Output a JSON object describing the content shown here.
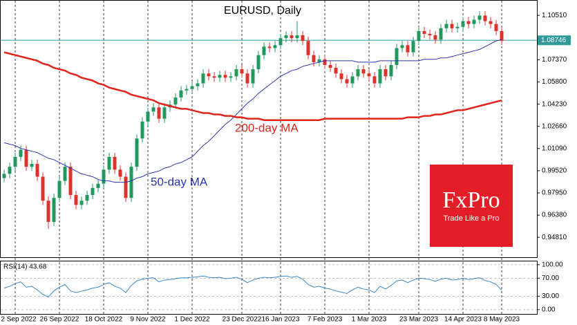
{
  "chart_data": [
    {
      "type": "candlestick",
      "title": "EURUSD, Daily",
      "categories": [
        null,
        null,
        "2 Sep 2022",
        null,
        null,
        null,
        null,
        null,
        null,
        null,
        "26 Sep 2022",
        null,
        null,
        null,
        null,
        null,
        null,
        null,
        "18 Oct 2022",
        null,
        null,
        null,
        null,
        null,
        null,
        null,
        "9 Nov 2022",
        null,
        null,
        null,
        null,
        null,
        null,
        null,
        "1 Dec 2022",
        null,
        null,
        null,
        null,
        null,
        null,
        null,
        null,
        "23 Dec 2022",
        null,
        null,
        null,
        null,
        null,
        null,
        "16 Jan 2023",
        null,
        null,
        null,
        null,
        null,
        null,
        null,
        "7 Feb 2023",
        null,
        null,
        null,
        null,
        null,
        null,
        null,
        "1 Mar 2023",
        null,
        null,
        null,
        null,
        null,
        null,
        null,
        null,
        "23 Mar 2023",
        null,
        null,
        null,
        null,
        null,
        null,
        null,
        "14 Apr 2023",
        null,
        null,
        null,
        null,
        null,
        null,
        "8 May 2023"
      ],
      "open": [
        0.99,
        0.993,
        0.998,
        1.005,
        1.01,
        0.998,
        1.0,
        0.991,
        0.974,
        0.959,
        0.976,
        0.988,
        0.998,
        0.978,
        0.971,
        0.974,
        0.978,
        0.983,
        0.986,
        0.996,
        1.005,
        0.996,
        0.991,
        0.976,
        0.998,
        1.018,
        1.03,
        1.037,
        1.04,
        1.032,
        1.04,
        1.042,
        1.047,
        1.052,
        1.053,
        1.055,
        1.057,
        1.064,
        1.062,
        1.061,
        1.063,
        1.061,
        1.062,
        1.067,
        1.064,
        1.057,
        1.067,
        1.077,
        1.083,
        1.082,
        1.084,
        1.089,
        1.091,
        1.089,
        1.091,
        1.087,
        1.077,
        1.072,
        1.074,
        1.07,
        1.068,
        1.064,
        1.06,
        1.057,
        1.062,
        1.067,
        1.064,
        1.062,
        1.057,
        1.067,
        1.062,
        1.07,
        1.082,
        1.084,
        1.079,
        1.087,
        1.094,
        1.092,
        1.091,
        1.088,
        1.096,
        1.099,
        1.096,
        1.097,
        1.101,
        1.099,
        1.102,
        1.105,
        1.101,
        1.099,
        1.094
      ],
      "high": [
        0.996,
        1.001,
        1.008,
        1.013,
        1.013,
        1.003,
        1.003,
        0.994,
        0.977,
        0.979,
        0.991,
        1.001,
        1.001,
        0.981,
        0.977,
        0.981,
        0.986,
        0.989,
        0.999,
        1.008,
        1.008,
        0.999,
        0.994,
        1.001,
        1.021,
        1.033,
        1.04,
        1.043,
        1.043,
        1.043,
        1.045,
        1.05,
        1.055,
        1.056,
        1.058,
        1.06,
        1.067,
        1.067,
        1.065,
        1.066,
        1.066,
        1.065,
        1.07,
        1.07,
        1.067,
        1.07,
        1.08,
        1.086,
        1.086,
        1.087,
        1.092,
        1.094,
        1.094,
        1.101,
        1.094,
        1.09,
        1.08,
        1.077,
        1.077,
        1.073,
        1.071,
        1.067,
        1.063,
        1.065,
        1.07,
        1.07,
        1.067,
        1.065,
        1.07,
        1.07,
        1.073,
        1.085,
        1.087,
        1.087,
        1.09,
        1.097,
        1.097,
        1.095,
        1.094,
        1.099,
        1.102,
        1.102,
        1.1,
        1.104,
        1.104,
        1.105,
        1.108,
        1.108,
        1.104,
        1.102,
        1.097
      ],
      "low": [
        0.987,
        0.99,
        0.995,
        1.002,
        0.995,
        0.995,
        0.988,
        0.971,
        0.954,
        0.956,
        0.973,
        0.985,
        0.975,
        0.968,
        0.968,
        0.971,
        0.975,
        0.98,
        0.983,
        0.993,
        0.993,
        0.988,
        0.973,
        0.973,
        0.995,
        1.015,
        1.027,
        1.034,
        1.029,
        1.029,
        1.037,
        1.039,
        1.044,
        1.049,
        1.05,
        1.052,
        1.054,
        1.059,
        1.058,
        1.058,
        1.058,
        1.058,
        1.059,
        1.061,
        1.054,
        1.054,
        1.064,
        1.074,
        1.079,
        1.079,
        1.081,
        1.086,
        1.086,
        1.086,
        1.084,
        1.074,
        1.069,
        1.069,
        1.067,
        1.065,
        1.061,
        1.057,
        1.054,
        1.054,
        1.059,
        1.061,
        1.059,
        1.054,
        1.054,
        1.059,
        1.059,
        1.067,
        1.079,
        1.076,
        1.076,
        1.084,
        1.089,
        1.088,
        1.085,
        1.085,
        1.093,
        1.093,
        1.093,
        1.094,
        1.096,
        1.096,
        1.099,
        1.098,
        1.096,
        1.091,
        1.084
      ],
      "close": [
        0.993,
        0.998,
        1.005,
        1.01,
        0.998,
        1.0,
        0.991,
        0.974,
        0.959,
        0.976,
        0.988,
        0.998,
        0.978,
        0.971,
        0.974,
        0.978,
        0.983,
        0.986,
        0.996,
        1.005,
        0.996,
        0.991,
        0.976,
        0.998,
        1.018,
        1.03,
        1.037,
        1.04,
        1.032,
        1.04,
        1.042,
        1.047,
        1.052,
        1.053,
        1.055,
        1.057,
        1.064,
        1.062,
        1.061,
        1.063,
        1.061,
        1.062,
        1.067,
        1.064,
        1.057,
        1.067,
        1.077,
        1.083,
        1.082,
        1.084,
        1.089,
        1.091,
        1.089,
        1.091,
        1.087,
        1.077,
        1.072,
        1.074,
        1.07,
        1.068,
        1.064,
        1.06,
        1.057,
        1.062,
        1.067,
        1.064,
        1.062,
        1.057,
        1.067,
        1.062,
        1.07,
        1.082,
        1.084,
        1.079,
        1.087,
        1.094,
        1.092,
        1.091,
        1.088,
        1.096,
        1.099,
        1.096,
        1.097,
        1.101,
        1.099,
        1.102,
        1.105,
        1.101,
        1.099,
        1.094,
        1.087
      ],
      "up_color": "#1f9a5c",
      "down_color": "#e0302a",
      "series": [
        {
          "name": "50-day MA",
          "color": "#2a35b0",
          "values": [
            1.015,
            1.014,
            1.013,
            1.011,
            1.01,
            1.009,
            1.008,
            1.006,
            1.004,
            1.003,
            1.001,
            0.999,
            0.997,
            0.995,
            0.993,
            0.992,
            0.991,
            0.989,
            0.988,
            0.988,
            0.987,
            0.987,
            0.987,
            0.988,
            0.99,
            0.991,
            0.993,
            0.994,
            0.995,
            0.997,
            0.998,
            1.0,
            1.001,
            1.003,
            1.005,
            1.009,
            1.013,
            1.016,
            1.02,
            1.024,
            1.028,
            1.031,
            1.035,
            1.039,
            1.043,
            1.046,
            1.05,
            1.053,
            1.056,
            1.059,
            1.062,
            1.064,
            1.066,
            1.067,
            1.069,
            1.07,
            1.071,
            1.072,
            1.073,
            1.073,
            1.073,
            1.073,
            1.073,
            1.073,
            1.072,
            1.072,
            1.072,
            1.072,
            1.073,
            1.073,
            1.073,
            1.073,
            1.073,
            1.073,
            1.073,
            1.073,
            1.074,
            1.074,
            1.074,
            1.075,
            1.075,
            1.076,
            1.077,
            1.078,
            1.079,
            1.08,
            1.081,
            1.083,
            1.085,
            1.087,
            1.088
          ]
        },
        {
          "name": "200-day MA",
          "color": "#e0231b",
          "values": [
            1.079,
            1.078,
            1.077,
            1.076,
            1.075,
            1.074,
            1.073,
            1.071,
            1.07,
            1.068,
            1.067,
            1.066,
            1.064,
            1.063,
            1.061,
            1.06,
            1.059,
            1.057,
            1.056,
            1.054,
            1.053,
            1.052,
            1.051,
            1.049,
            1.048,
            1.047,
            1.046,
            1.045,
            1.043,
            1.042,
            1.041,
            1.04,
            1.039,
            1.039,
            1.038,
            1.037,
            1.036,
            1.036,
            1.035,
            1.035,
            1.034,
            1.034,
            1.033,
            1.033,
            1.032,
            1.032,
            1.032,
            1.031,
            1.031,
            1.031,
            1.031,
            1.031,
            1.031,
            1.031,
            1.031,
            1.031,
            1.031,
            1.031,
            1.032,
            1.032,
            1.032,
            1.032,
            1.032,
            1.032,
            1.032,
            1.032,
            1.032,
            1.032,
            1.032,
            1.032,
            1.032,
            1.032,
            1.032,
            1.033,
            1.033,
            1.033,
            1.034,
            1.034,
            1.035,
            1.035,
            1.036,
            1.037,
            1.038,
            1.038,
            1.039,
            1.04,
            1.041,
            1.042,
            1.043,
            1.044,
            1.045
          ]
        }
      ],
      "current_price": 1.08746,
      "price_line_color": "#2e9a9a",
      "ylim": [
        0.934,
        1.115
      ],
      "yticks": [
        {
          "value": 1.1051,
          "label": "1.10510"
        },
        {
          "value": 1.0737,
          "label": "1.07370"
        },
        {
          "value": 1.058,
          "label": "1.05800"
        },
        {
          "value": 1.0423,
          "label": "1.04230"
        },
        {
          "value": 1.0266,
          "label": "1.02660"
        },
        {
          "value": 1.0109,
          "label": "1.01090"
        },
        {
          "value": 0.9952,
          "label": "0.99520"
        },
        {
          "value": 0.9795,
          "label": "0.97950"
        },
        {
          "value": 0.9638,
          "label": "0.96380"
        },
        {
          "value": 0.9481,
          "label": "0.94810"
        }
      ],
      "grid": true
    },
    {
      "type": "line",
      "title": "RSI(14) 43.68",
      "color": "#3a87c8",
      "values": [
        48,
        52,
        58,
        62,
        50,
        52,
        44,
        34,
        28,
        42,
        50,
        56,
        42,
        38,
        41,
        44,
        48,
        50,
        56,
        60,
        52,
        48,
        38,
        54,
        64,
        68,
        70,
        71,
        62,
        66,
        67,
        69,
        71,
        71,
        72,
        73,
        75,
        72,
        71,
        72,
        69,
        70,
        72,
        68,
        60,
        66,
        70,
        72,
        71,
        72,
        74,
        75,
        72,
        74,
        68,
        56,
        50,
        52,
        48,
        46,
        42,
        39,
        36,
        44,
        50,
        46,
        44,
        38,
        52,
        46,
        54,
        64,
        66,
        60,
        66,
        70,
        69,
        67,
        63,
        68,
        70,
        66,
        67,
        70,
        67,
        69,
        71,
        65,
        62,
        56,
        43.68
      ],
      "ylim": [
        -11,
        109
      ],
      "yticks": [
        {
          "value": 100,
          "label": "100.00"
        },
        {
          "value": 70,
          "label": "70.00"
        },
        {
          "value": 30,
          "label": "30.00"
        },
        {
          "value": 0,
          "label": "0.00"
        }
      ],
      "grid": true
    }
  ],
  "brand": {
    "name": "FxPro",
    "tagline": "Trade Like a Pro"
  }
}
